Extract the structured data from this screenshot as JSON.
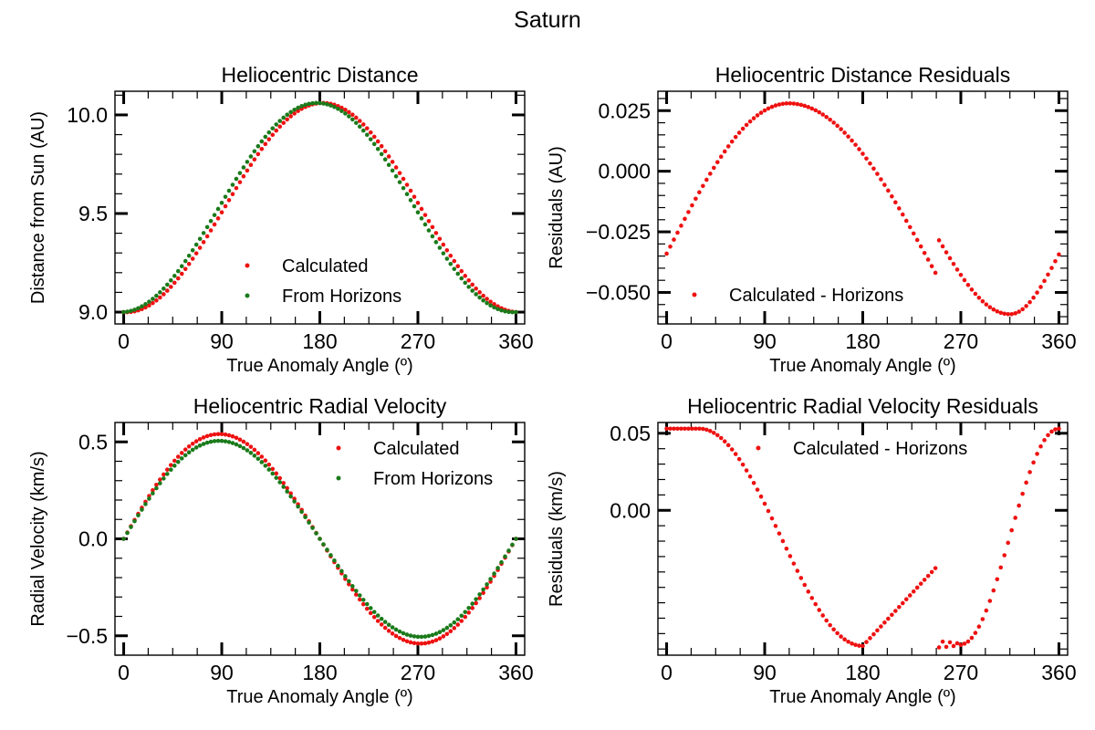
{
  "figure": {
    "suptitle": "Saturn"
  },
  "colors": {
    "calculated": "#ee1111",
    "horizons": "#1a7a1a"
  },
  "chart_data": [
    {
      "id": "distance",
      "type": "scatter",
      "title": "Heliocentric Distance",
      "xlabel": "True Anomaly Angle (º)",
      "ylabel": "Distance from Sun (AU)",
      "xlim": [
        -8,
        368
      ],
      "ylim": [
        8.94,
        10.12
      ],
      "xticks": [
        0,
        90,
        180,
        270,
        360
      ],
      "xtick_labels": [
        "0",
        "90",
        "180",
        "270",
        "360"
      ],
      "yticks": [
        9.0,
        9.5,
        10.0
      ],
      "ytick_labels": [
        "9.0",
        "9.5",
        "10.0"
      ],
      "legend_position": "lower-center",
      "legend": [
        "Calculated",
        "From Horizons"
      ],
      "model": "distance",
      "series": [
        {
          "name": "Calculated",
          "color": "#ee1111",
          "shift": -0.0004,
          "params": {
            "r0": 9.0,
            "amp": 1.06,
            "offset": 0
          }
        },
        {
          "name": "From Horizons",
          "color": "#1a7a1a",
          "shift": 0.0004,
          "params": {
            "r0": 9.0,
            "amp": 1.06,
            "offset": 0
          }
        }
      ]
    },
    {
      "id": "distance-residuals",
      "type": "scatter",
      "title": "Heliocentric Distance Residuals",
      "xlabel": "True Anomaly Angle (º)",
      "ylabel": "Residuals (AU)",
      "xlim": [
        -8,
        368
      ],
      "ylim": [
        -0.063,
        0.033
      ],
      "xticks": [
        0,
        90,
        180,
        270,
        360
      ],
      "xtick_labels": [
        "0",
        "90",
        "180",
        "270",
        "360"
      ],
      "yticks": [
        -0.05,
        -0.025,
        0.0,
        0.025
      ],
      "ytick_labels": [
        "−0.050",
        "−0.025",
        "0.000",
        "0.025"
      ],
      "legend_position": "lower-center",
      "legend": [
        "Calculated - Horizons"
      ],
      "model": "dist_resid",
      "series": [
        {
          "name": "Calculated - Horizons",
          "color": "#ee1111",
          "params": {
            "a": 0.031,
            "b": -0.003
          }
        }
      ]
    },
    {
      "id": "radial-velocity",
      "type": "scatter",
      "title": "Heliocentric Radial Velocity",
      "xlabel": "True Anomaly Angle (º)",
      "ylabel": "Radial Velocity (km/s)",
      "xlim": [
        -8,
        368
      ],
      "ylim": [
        -0.6,
        0.6
      ],
      "xticks": [
        0,
        90,
        180,
        270,
        360
      ],
      "xtick_labels": [
        "0",
        "90",
        "180",
        "270",
        "360"
      ],
      "yticks": [
        -0.5,
        0.0,
        0.5
      ],
      "ytick_labels": [
        "−0.5",
        "0.0",
        "0.5"
      ],
      "legend_position": "upper-right",
      "legend": [
        "Calculated",
        "From Horizons"
      ],
      "model": "velocity",
      "series": [
        {
          "name": "Calculated",
          "color": "#ee1111",
          "params": {
            "amp": 0.54
          }
        },
        {
          "name": "From Horizons",
          "color": "#1a7a1a",
          "params": {
            "amp": 0.505
          }
        }
      ]
    },
    {
      "id": "radial-velocity-residuals",
      "type": "scatter",
      "title": "Heliocentric Radial Velocity Residuals",
      "xlabel": "True Anomaly Angle (º)",
      "ylabel": "Residuals (km/s)",
      "xlim": [
        -8,
        368
      ],
      "ylim": [
        -0.094,
        0.057
      ],
      "xticks": [
        0,
        90,
        180,
        270,
        360
      ],
      "xtick_labels": [
        "0",
        "90",
        "180",
        "270",
        "360"
      ],
      "yticks": [
        0.0,
        0.05
      ],
      "ytick_labels": [
        "0.00",
        "0.05"
      ],
      "legend_position": "upper-center",
      "legend": [
        "Calculated - Horizons"
      ],
      "model": "vel_resid",
      "series": [
        {
          "name": "Calculated - Horizons",
          "color": "#ee1111"
        }
      ]
    }
  ]
}
